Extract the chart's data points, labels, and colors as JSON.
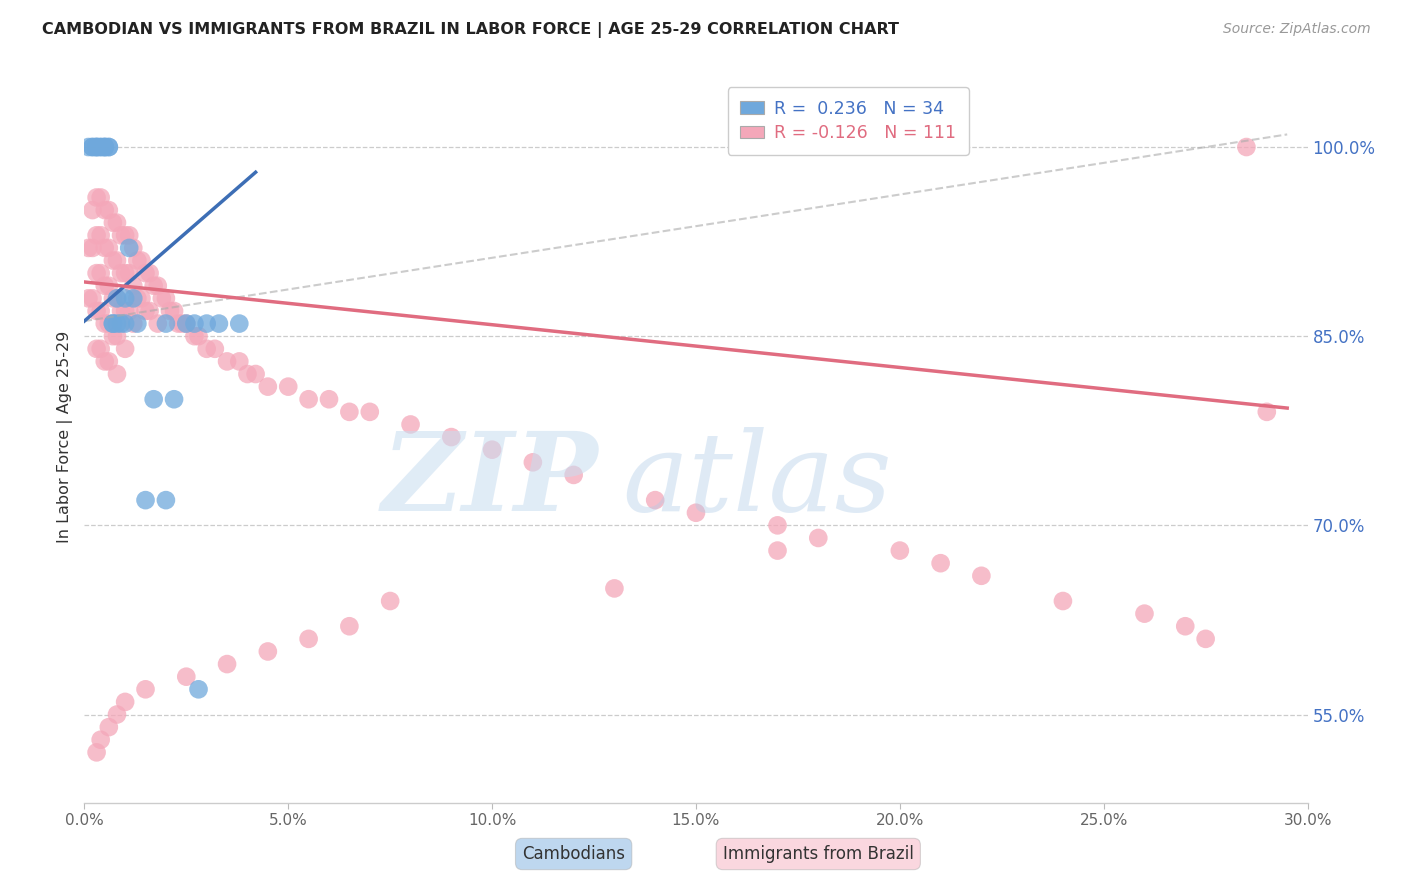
{
  "title": "CAMBODIAN VS IMMIGRANTS FROM BRAZIL IN LABOR FORCE | AGE 25-29 CORRELATION CHART",
  "source": "Source: ZipAtlas.com",
  "ylabel": "In Labor Force | Age 25-29",
  "xlim": [
    0.0,
    0.3
  ],
  "ylim": [
    0.48,
    1.06
  ],
  "xtick_vals": [
    0.0,
    0.05,
    0.1,
    0.15,
    0.2,
    0.25,
    0.3
  ],
  "ytick_vals_right": [
    0.55,
    0.7,
    0.85,
    1.0
  ],
  "ytick_labels_right": [
    "55.0%",
    "70.0%",
    "85.0%",
    "100.0%"
  ],
  "cambodian_color": "#6fa8dc",
  "brazil_color": "#f4a7b9",
  "cambodian_line_color": "#3d6eb5",
  "brazil_line_color": "#e06c80",
  "ref_line_color": "#aaaaaa",
  "watermark_zip_color": "#c8ddf0",
  "watermark_atlas_color": "#b0cce8",
  "cam_x": [
    0.001,
    0.002,
    0.002,
    0.003,
    0.003,
    0.003,
    0.004,
    0.004,
    0.005,
    0.005,
    0.005,
    0.006,
    0.006,
    0.007,
    0.007,
    0.008,
    0.008,
    0.009,
    0.01,
    0.01,
    0.011,
    0.012,
    0.013,
    0.015,
    0.017,
    0.02,
    0.02,
    0.022,
    0.025,
    0.027,
    0.028,
    0.03,
    0.033,
    0.038
  ],
  "cam_y": [
    1.0,
    1.0,
    1.0,
    1.0,
    1.0,
    1.0,
    1.0,
    1.0,
    1.0,
    1.0,
    1.0,
    1.0,
    1.0,
    0.86,
    0.86,
    0.88,
    0.86,
    0.86,
    0.88,
    0.86,
    0.92,
    0.88,
    0.86,
    0.72,
    0.8,
    0.86,
    0.72,
    0.8,
    0.86,
    0.86,
    0.57,
    0.86,
    0.86,
    0.86
  ],
  "bra_x": [
    0.001,
    0.001,
    0.002,
    0.002,
    0.002,
    0.003,
    0.003,
    0.003,
    0.003,
    0.003,
    0.004,
    0.004,
    0.004,
    0.004,
    0.004,
    0.005,
    0.005,
    0.005,
    0.005,
    0.005,
    0.006,
    0.006,
    0.006,
    0.006,
    0.006,
    0.007,
    0.007,
    0.007,
    0.007,
    0.008,
    0.008,
    0.008,
    0.008,
    0.008,
    0.009,
    0.009,
    0.009,
    0.01,
    0.01,
    0.01,
    0.01,
    0.011,
    0.011,
    0.011,
    0.012,
    0.012,
    0.012,
    0.013,
    0.013,
    0.014,
    0.014,
    0.015,
    0.015,
    0.016,
    0.016,
    0.017,
    0.018,
    0.018,
    0.019,
    0.02,
    0.021,
    0.022,
    0.023,
    0.024,
    0.025,
    0.027,
    0.028,
    0.03,
    0.032,
    0.035,
    0.038,
    0.04,
    0.042,
    0.045,
    0.05,
    0.055,
    0.06,
    0.065,
    0.07,
    0.08,
    0.09,
    0.1,
    0.11,
    0.12,
    0.14,
    0.15,
    0.17,
    0.18,
    0.2,
    0.21,
    0.22,
    0.24,
    0.26,
    0.27,
    0.275,
    0.285,
    0.29,
    0.17,
    0.13,
    0.075,
    0.065,
    0.055,
    0.045,
    0.035,
    0.025,
    0.015,
    0.01,
    0.008,
    0.006,
    0.004,
    0.003
  ],
  "bra_y": [
    0.92,
    0.88,
    0.95,
    0.92,
    0.88,
    0.96,
    0.93,
    0.9,
    0.87,
    0.84,
    0.96,
    0.93,
    0.9,
    0.87,
    0.84,
    0.95,
    0.92,
    0.89,
    0.86,
    0.83,
    0.95,
    0.92,
    0.89,
    0.86,
    0.83,
    0.94,
    0.91,
    0.88,
    0.85,
    0.94,
    0.91,
    0.88,
    0.85,
    0.82,
    0.93,
    0.9,
    0.87,
    0.93,
    0.9,
    0.87,
    0.84,
    0.93,
    0.9,
    0.87,
    0.92,
    0.89,
    0.86,
    0.91,
    0.88,
    0.91,
    0.88,
    0.9,
    0.87,
    0.9,
    0.87,
    0.89,
    0.89,
    0.86,
    0.88,
    0.88,
    0.87,
    0.87,
    0.86,
    0.86,
    0.86,
    0.85,
    0.85,
    0.84,
    0.84,
    0.83,
    0.83,
    0.82,
    0.82,
    0.81,
    0.81,
    0.8,
    0.8,
    0.79,
    0.79,
    0.78,
    0.77,
    0.76,
    0.75,
    0.74,
    0.72,
    0.71,
    0.7,
    0.69,
    0.68,
    0.67,
    0.66,
    0.64,
    0.63,
    0.62,
    0.61,
    1.0,
    0.79,
    0.68,
    0.65,
    0.64,
    0.62,
    0.61,
    0.6,
    0.59,
    0.58,
    0.57,
    0.56,
    0.55,
    0.54,
    0.53,
    0.52
  ],
  "cam_trend_x": [
    0.0,
    0.042
  ],
  "cam_trend_y": [
    0.862,
    0.98
  ],
  "bra_trend_x": [
    0.0,
    0.295
  ],
  "bra_trend_y": [
    0.893,
    0.793
  ],
  "ref_line_x": [
    0.0,
    0.295
  ],
  "ref_line_y": [
    0.862,
    1.01
  ]
}
